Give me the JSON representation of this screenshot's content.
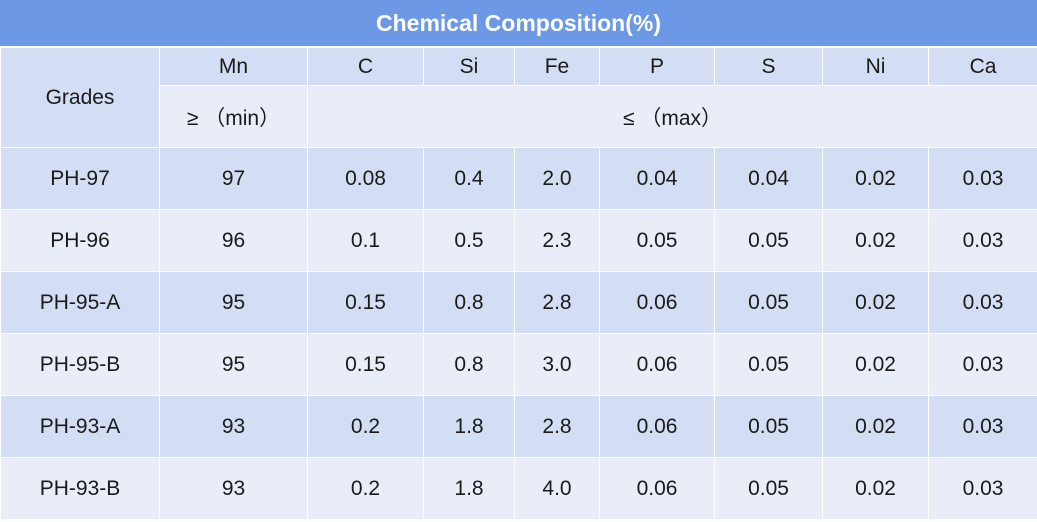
{
  "title": "Chemical Composition(%)",
  "header": {
    "grades": "Grades",
    "columns": [
      "Mn",
      "C",
      "Si",
      "Fe",
      "P",
      "S",
      "Ni",
      "Ca"
    ],
    "min_label": "≥ （min）",
    "max_label": "≤ （max）"
  },
  "rows": [
    {
      "grade": "PH-97",
      "values": [
        "97",
        "0.08",
        "0.4",
        "2.0",
        "0.04",
        "0.04",
        "0.02",
        "0.03"
      ]
    },
    {
      "grade": "PH-96",
      "values": [
        "96",
        "0.1",
        "0.5",
        "2.3",
        "0.05",
        "0.05",
        "0.02",
        "0.03"
      ]
    },
    {
      "grade": "PH-95-A",
      "values": [
        "95",
        "0.15",
        "0.8",
        "2.8",
        "0.06",
        "0.05",
        "0.02",
        "0.03"
      ]
    },
    {
      "grade": "PH-95-B",
      "values": [
        "95",
        "0.15",
        "0.8",
        "3.0",
        "0.06",
        "0.05",
        "0.02",
        "0.03"
      ]
    },
    {
      "grade": "PH-93-A",
      "values": [
        "93",
        "0.2",
        "1.8",
        "2.8",
        "0.06",
        "0.05",
        "0.02",
        "0.03"
      ]
    },
    {
      "grade": "PH-93-B",
      "values": [
        "93",
        "0.2",
        "1.8",
        "4.0",
        "0.06",
        "0.05",
        "0.02",
        "0.03"
      ]
    }
  ],
  "colors": {
    "title_bg": "#6c98e6",
    "band_dark": "#d3ddf3",
    "band_light": "#e8edf8"
  }
}
